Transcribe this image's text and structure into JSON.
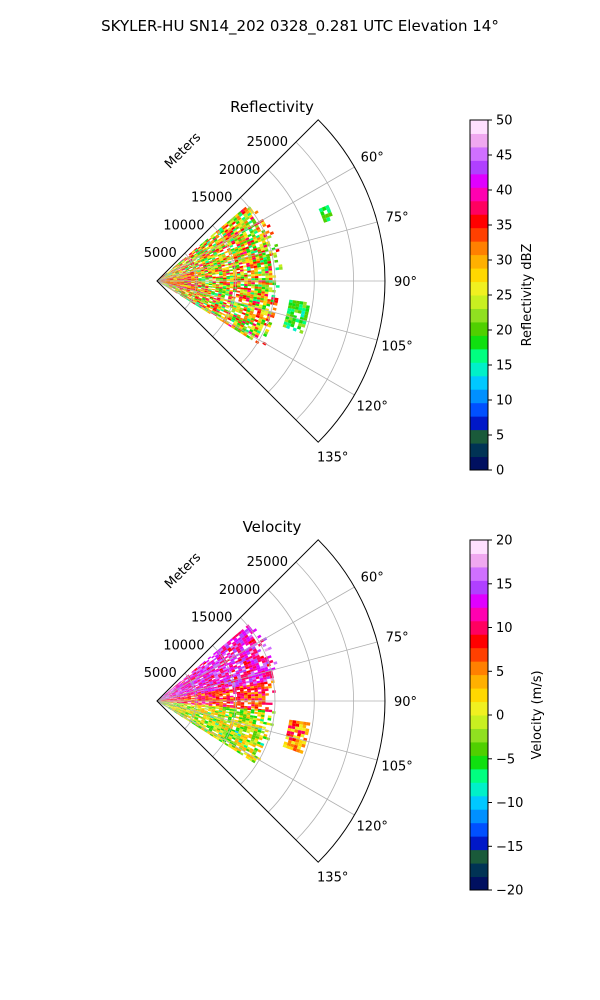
{
  "figure": {
    "suptitle": "SKYLER-HU  SN14_202  0328_0.281 UTC Elevation 14°"
  },
  "chart_data": [
    {
      "type": "heatmap",
      "title": "Reflectivity",
      "projection": "polar-sector",
      "radial_axis_label": "Meters",
      "radial_ticks": [
        5000,
        10000,
        15000,
        20000,
        25000
      ],
      "radial_tick_labels": [
        "5000",
        "10000",
        "15000",
        "20000",
        "25000"
      ],
      "radius_max": 29000,
      "azimuth_range": [
        45,
        135
      ],
      "azimuth_ticks": [
        60,
        75,
        90,
        105,
        120,
        135
      ],
      "azimuth_tick_labels": [
        "60°",
        "75°",
        "90°",
        "105°",
        "120°",
        "135°"
      ],
      "grid": true,
      "colorbar": {
        "label": "Reflectivity dBZ",
        "range": [
          0,
          50
        ],
        "ticks": [
          0,
          5,
          10,
          15,
          20,
          25,
          30,
          35,
          40,
          45,
          50
        ],
        "tick_labels": [
          "0",
          "5",
          "10",
          "15",
          "20",
          "25",
          "30",
          "35",
          "40",
          "45",
          "50"
        ],
        "colors": [
          "#001060",
          "#003355",
          "#1a5a3a",
          "#0018c8",
          "#0050ff",
          "#0090ff",
          "#00c8ff",
          "#00f0c8",
          "#00ff80",
          "#10e010",
          "#50d000",
          "#90e020",
          "#c8f020",
          "#f0f020",
          "#ffd800",
          "#ffb000",
          "#ff8000",
          "#ff4000",
          "#ff0000",
          "#ff0060",
          "#ff00b0",
          "#e000ff",
          "#b040ff",
          "#d070ff",
          "#f0a8f0",
          "#ffe0ff"
        ]
      },
      "echo_regions": [
        {
          "r_range": [
            0,
            16000
          ],
          "az_range": [
            50,
            122
          ],
          "dominant_dbz": 27,
          "min_dbz": 15,
          "max_dbz": 40
        },
        {
          "r_range": [
            0,
            5000
          ],
          "az_range": [
            75,
            105
          ],
          "dominant_dbz": 33,
          "min_dbz": 25,
          "max_dbz": 43
        },
        {
          "r_range": [
            17000,
            19500
          ],
          "az_range": [
            98,
            110
          ],
          "dominant_dbz": 19,
          "min_dbz": 15,
          "max_dbz": 24
        },
        {
          "r_range": [
            22500,
            23500
          ],
          "az_range": [
            66,
            70
          ],
          "dominant_dbz": 18,
          "min_dbz": 15,
          "max_dbz": 22
        }
      ]
    },
    {
      "type": "heatmap",
      "title": "Velocity",
      "projection": "polar-sector",
      "radial_axis_label": "Meters",
      "radial_ticks": [
        5000,
        10000,
        15000,
        20000,
        25000
      ],
      "radial_tick_labels": [
        "5000",
        "10000",
        "15000",
        "20000",
        "25000"
      ],
      "radius_max": 29000,
      "azimuth_range": [
        45,
        135
      ],
      "azimuth_ticks": [
        60,
        75,
        90,
        105,
        120,
        135
      ],
      "azimuth_tick_labels": [
        "60°",
        "75°",
        "90°",
        "105°",
        "120°",
        "135°"
      ],
      "grid": true,
      "colorbar": {
        "label": "Velocity (m/s)",
        "range": [
          -20,
          20
        ],
        "ticks": [
          -20,
          -15,
          -10,
          -5,
          0,
          5,
          10,
          15,
          20
        ],
        "tick_labels": [
          "−20",
          "−15",
          "−10",
          "−5",
          "0",
          "5",
          "10",
          "15",
          "20"
        ],
        "colors": [
          "#001060",
          "#003355",
          "#1a5a3a",
          "#0018c8",
          "#0050ff",
          "#0090ff",
          "#00c8ff",
          "#00f0c8",
          "#00ff80",
          "#10e010",
          "#50d000",
          "#90e020",
          "#c8f020",
          "#f0f020",
          "#ffd800",
          "#ffb000",
          "#ff8000",
          "#ff4000",
          "#ff0000",
          "#ff0060",
          "#ff00b0",
          "#e000ff",
          "#b040ff",
          "#d070ff",
          "#f0a8f0",
          "#ffe0ff"
        ]
      },
      "echo_regions": [
        {
          "r_range": [
            0,
            16000
          ],
          "az_range": [
            50,
            80
          ],
          "dominant_vel": 13,
          "min_vel": 8,
          "max_vel": 17
        },
        {
          "r_range": [
            0,
            15000
          ],
          "az_range": [
            80,
            95
          ],
          "dominant_vel": 8,
          "min_vel": 3,
          "max_vel": 12
        },
        {
          "r_range": [
            0,
            15000
          ],
          "az_range": [
            95,
            122
          ],
          "dominant_vel": 0,
          "min_vel": -10,
          "max_vel": 4
        },
        {
          "r_range": [
            17000,
            19500
          ],
          "az_range": [
            98,
            110
          ],
          "dominant_vel": 5,
          "min_vel": 0,
          "max_vel": 12
        }
      ]
    }
  ]
}
